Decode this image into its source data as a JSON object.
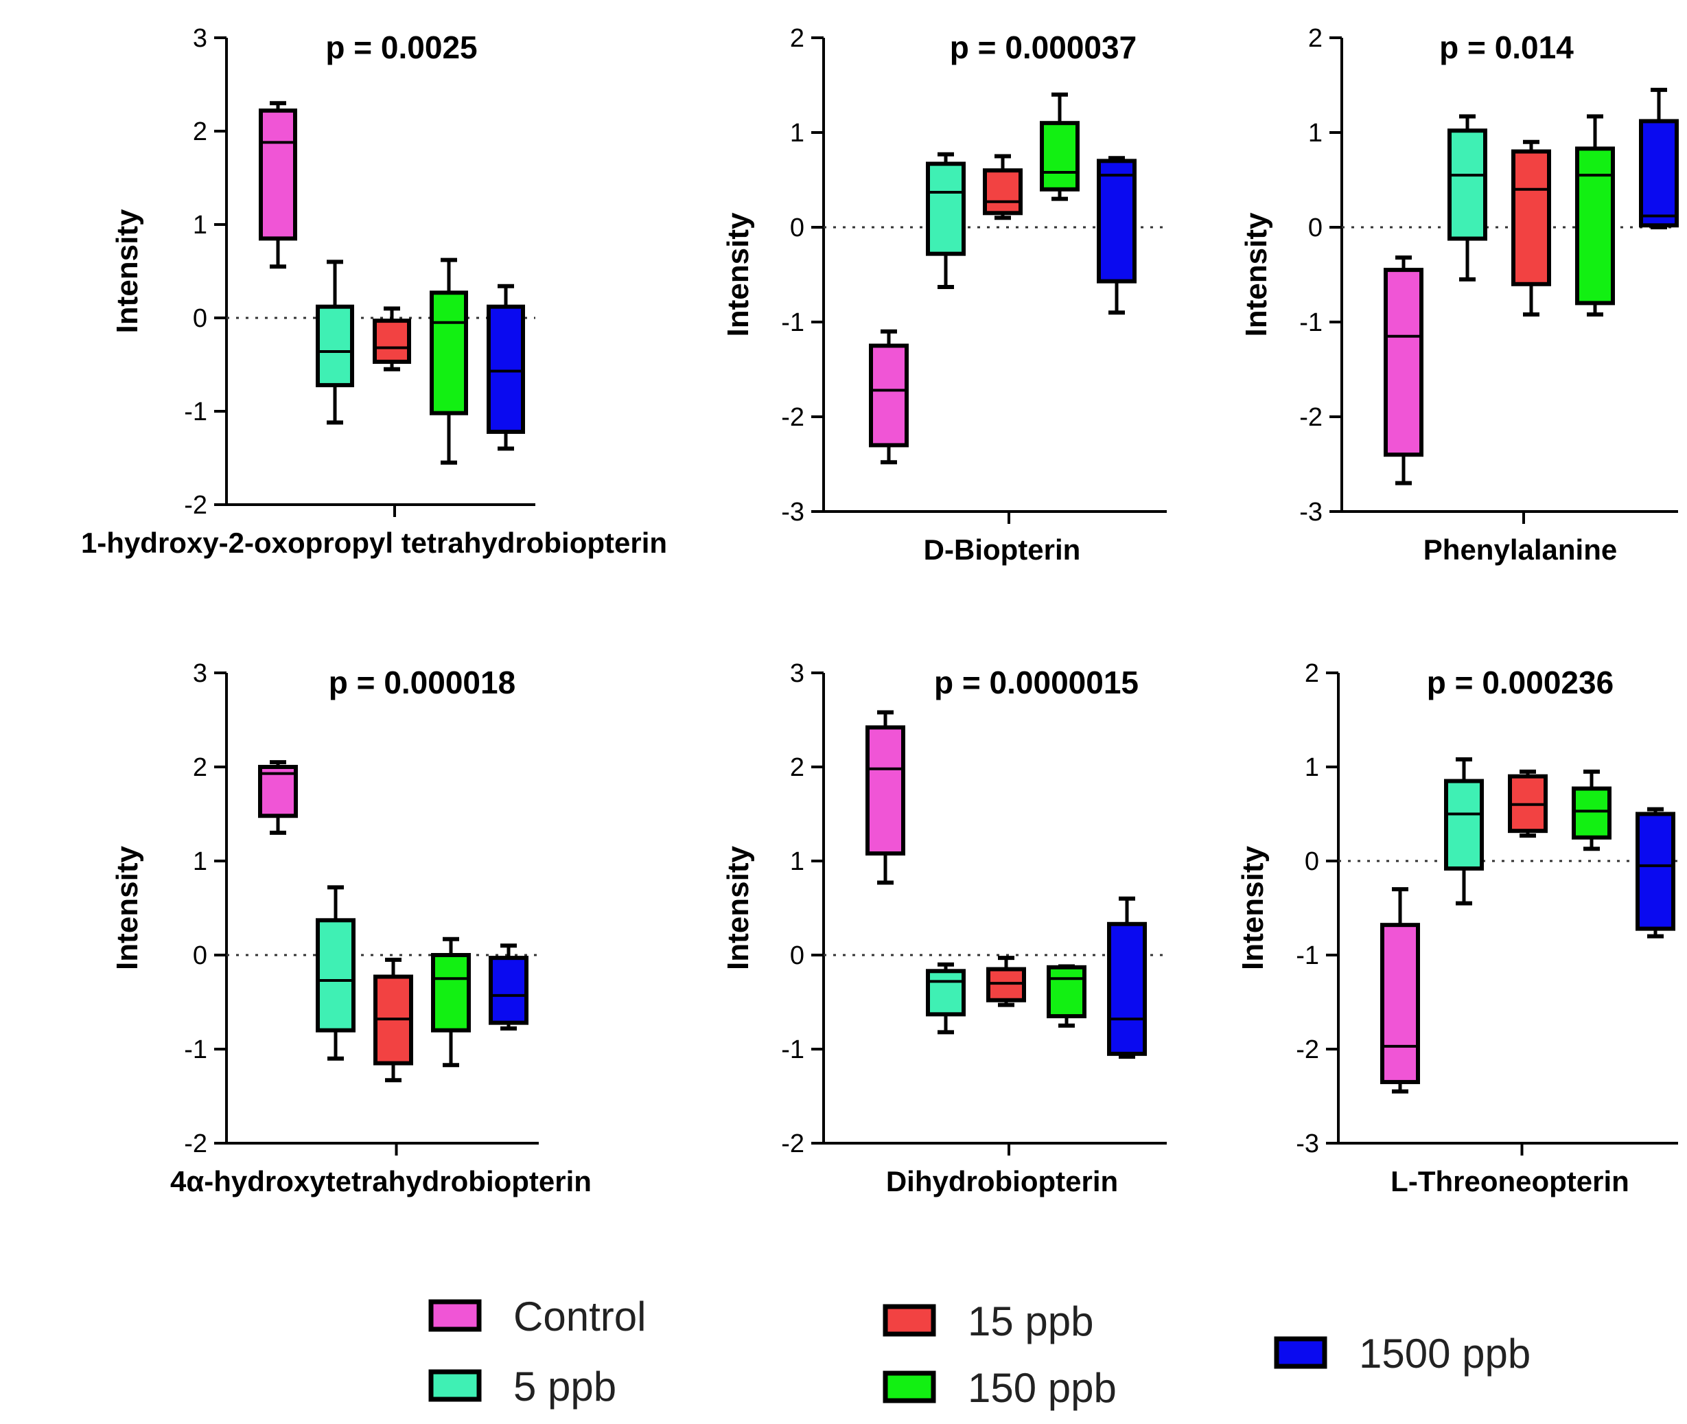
{
  "legend": [
    {
      "label": "Control",
      "color": "#f055d6"
    },
    {
      "label": "5 ppb",
      "color": "#3ff0b4"
    },
    {
      "label": "15 ppb",
      "color": "#f24242"
    },
    {
      "label": "150 ppb",
      "color": "#12f012"
    },
    {
      "label": "1500 ppb",
      "color": "#0a0af0"
    }
  ],
  "chart_data": [
    {
      "type": "box",
      "title": "p = 0.0025",
      "xlabel": "1-hydroxy-2-oxopropyl tetrahydrobiopterin",
      "ylabel": "Intensity",
      "ylim": [
        -2,
        3
      ],
      "yticks": [
        "-2",
        "-1",
        "0",
        "1",
        "2",
        "3"
      ],
      "reference_line": 0,
      "series": [
        {
          "name": "Control",
          "min": 0.55,
          "q1": 0.85,
          "median": 1.88,
          "q3": 2.22,
          "max": 2.3
        },
        {
          "name": "5 ppb",
          "min": -1.12,
          "q1": -0.72,
          "median": -0.36,
          "q3": 0.12,
          "max": 0.6
        },
        {
          "name": "15 ppb",
          "min": -0.55,
          "q1": -0.47,
          "median": -0.32,
          "q3": -0.03,
          "max": 0.1
        },
        {
          "name": "150 ppb",
          "min": -1.55,
          "q1": -1.02,
          "median": -0.05,
          "q3": 0.27,
          "max": 0.62
        },
        {
          "name": "1500 ppb",
          "min": -1.4,
          "q1": -1.22,
          "median": -0.57,
          "q3": 0.12,
          "max": 0.34
        }
      ]
    },
    {
      "type": "box",
      "title": "p = 0.000037",
      "xlabel": "D-Biopterin",
      "ylabel": "Intensity",
      "ylim": [
        -3,
        2
      ],
      "yticks": [
        "-3",
        "-2",
        "-1",
        "0",
        "1",
        "2"
      ],
      "reference_line": 0,
      "series": [
        {
          "name": "Control",
          "min": -2.48,
          "q1": -2.3,
          "median": -1.72,
          "q3": -1.25,
          "max": -1.1
        },
        {
          "name": "5 ppb",
          "min": -0.63,
          "q1": -0.28,
          "median": 0.37,
          "q3": 0.67,
          "max": 0.77
        },
        {
          "name": "15 ppb",
          "min": 0.1,
          "q1": 0.15,
          "median": 0.27,
          "q3": 0.6,
          "max": 0.75
        },
        {
          "name": "150 ppb",
          "min": 0.3,
          "q1": 0.4,
          "median": 0.58,
          "q3": 1.1,
          "max": 1.4
        },
        {
          "name": "1500 ppb",
          "min": -0.9,
          "q1": -0.57,
          "median": 0.55,
          "q3": 0.7,
          "max": 0.73
        }
      ]
    },
    {
      "type": "box",
      "title": "p = 0.014",
      "xlabel": "Phenylalanine",
      "ylabel": "Intensity",
      "ylim": [
        -3,
        2
      ],
      "yticks": [
        "-3",
        "-2",
        "-1",
        "0",
        "1",
        "2"
      ],
      "reference_line": 0,
      "series": [
        {
          "name": "Control",
          "min": -2.7,
          "q1": -2.4,
          "median": -1.15,
          "q3": -0.45,
          "max": -0.32
        },
        {
          "name": "5 ppb",
          "min": -0.55,
          "q1": -0.12,
          "median": 0.55,
          "q3": 1.02,
          "max": 1.17
        },
        {
          "name": "15 ppb",
          "min": -0.92,
          "q1": -0.6,
          "median": 0.4,
          "q3": 0.8,
          "max": 0.9
        },
        {
          "name": "150 ppb",
          "min": -0.92,
          "q1": -0.8,
          "median": 0.55,
          "q3": 0.83,
          "max": 1.17
        },
        {
          "name": "1500 ppb",
          "min": 0.0,
          "q1": 0.02,
          "median": 0.12,
          "q3": 1.12,
          "max": 1.45
        }
      ]
    },
    {
      "type": "box",
      "title": "p = 0.000018",
      "xlabel": "4α-hydroxytetrahydrobiopterin",
      "ylabel": "Intensity",
      "ylim": [
        -2,
        3
      ],
      "yticks": [
        "-2",
        "-1",
        "0",
        "1",
        "2",
        "3"
      ],
      "reference_line": 0,
      "series": [
        {
          "name": "Control",
          "min": 1.3,
          "q1": 1.48,
          "median": 1.93,
          "q3": 2.0,
          "max": 2.05
        },
        {
          "name": "5 ppb",
          "min": -1.1,
          "q1": -0.8,
          "median": -0.27,
          "q3": 0.37,
          "max": 0.72
        },
        {
          "name": "15 ppb",
          "min": -1.33,
          "q1": -1.15,
          "median": -0.68,
          "q3": -0.23,
          "max": -0.05
        },
        {
          "name": "150 ppb",
          "min": -1.17,
          "q1": -0.8,
          "median": -0.25,
          "q3": 0.0,
          "max": 0.17
        },
        {
          "name": "1500 ppb",
          "min": -0.78,
          "q1": -0.72,
          "median": -0.43,
          "q3": -0.03,
          "max": 0.1
        }
      ]
    },
    {
      "type": "box",
      "title": "p = 0.0000015",
      "xlabel": "Dihydrobiopterin",
      "ylabel": "Intensity",
      "ylim": [
        -2,
        3
      ],
      "yticks": [
        "-2",
        "-1",
        "0",
        "1",
        "2",
        "3"
      ],
      "reference_line": 0,
      "series": [
        {
          "name": "Control",
          "min": 0.77,
          "q1": 1.08,
          "median": 1.98,
          "q3": 2.42,
          "max": 2.58
        },
        {
          "name": "5 ppb",
          "min": -0.82,
          "q1": -0.63,
          "median": -0.28,
          "q3": -0.17,
          "max": -0.1
        },
        {
          "name": "15 ppb",
          "min": -0.53,
          "q1": -0.48,
          "median": -0.3,
          "q3": -0.15,
          "max": -0.03
        },
        {
          "name": "150 ppb",
          "min": -0.75,
          "q1": -0.65,
          "median": -0.25,
          "q3": -0.13,
          "max": -0.12
        },
        {
          "name": "1500 ppb",
          "min": -1.08,
          "q1": -1.05,
          "median": -0.68,
          "q3": 0.33,
          "max": 0.6
        }
      ]
    },
    {
      "type": "box",
      "title": "p = 0.000236",
      "xlabel": "L-Threoneopterin",
      "ylabel": "Intensity",
      "ylim": [
        -3,
        2
      ],
      "yticks": [
        "-3",
        "-2",
        "-1",
        "0",
        "1",
        "2"
      ],
      "reference_line": 0,
      "series": [
        {
          "name": "Control",
          "min": -2.45,
          "q1": -2.35,
          "median": -1.97,
          "q3": -0.68,
          "max": -0.3
        },
        {
          "name": "5 ppb",
          "min": -0.45,
          "q1": -0.08,
          "median": 0.5,
          "q3": 0.85,
          "max": 1.08
        },
        {
          "name": "15 ppb",
          "min": 0.27,
          "q1": 0.32,
          "median": 0.6,
          "q3": 0.9,
          "max": 0.95
        },
        {
          "name": "150 ppb",
          "min": 0.13,
          "q1": 0.25,
          "median": 0.53,
          "q3": 0.77,
          "max": 0.95
        },
        {
          "name": "1500 ppb",
          "min": -0.8,
          "q1": -0.72,
          "median": -0.05,
          "q3": 0.5,
          "max": 0.55
        }
      ]
    }
  ]
}
